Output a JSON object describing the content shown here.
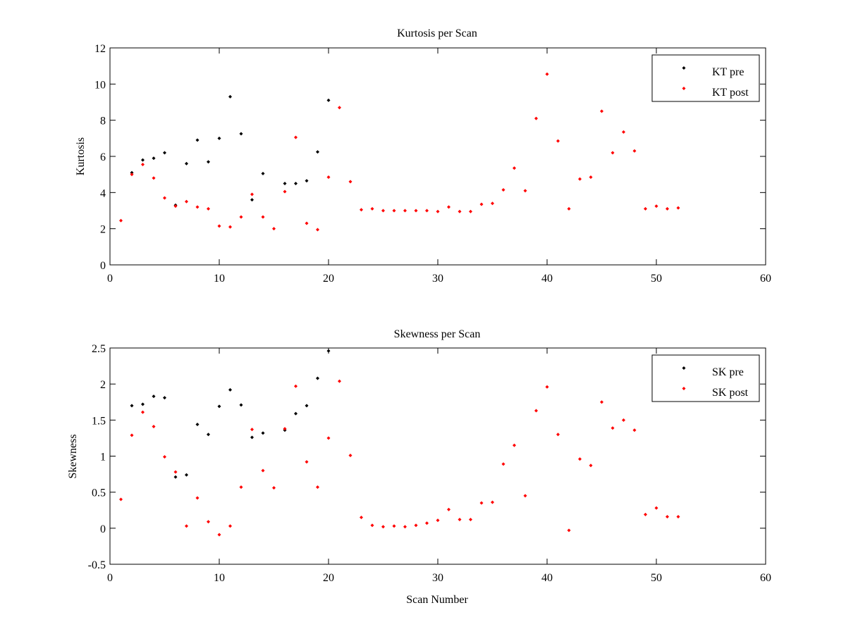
{
  "chart_data": [
    {
      "type": "scatter",
      "title": "Kurtosis per Scan",
      "xlabel": "",
      "ylabel": "Kurtosis",
      "xlim": [
        0,
        60
      ],
      "ylim": [
        0,
        12
      ],
      "xticks": [
        0,
        10,
        20,
        30,
        40,
        50,
        60
      ],
      "yticks": [
        0,
        2,
        4,
        6,
        8,
        10,
        12
      ],
      "grid": false,
      "legend_position": "top-right",
      "series": [
        {
          "name": "KT pre",
          "color": "#000000",
          "x": [
            2,
            3,
            4,
            5,
            6,
            7,
            8,
            9,
            10,
            11,
            12,
            13,
            14,
            16,
            17,
            18,
            19,
            20
          ],
          "y": [
            5.1,
            5.8,
            5.9,
            6.2,
            3.3,
            5.6,
            6.9,
            5.7,
            7.0,
            9.3,
            7.25,
            3.6,
            5.05,
            4.5,
            4.5,
            4.65,
            6.25,
            9.1
          ]
        },
        {
          "name": "KT post",
          "color": "#ff0000",
          "x": [
            1,
            2,
            3,
            4,
            5,
            6,
            7,
            8,
            9,
            10,
            11,
            12,
            13,
            14,
            15,
            16,
            17,
            18,
            19,
            20,
            21,
            22,
            23,
            24,
            25,
            26,
            27,
            28,
            29,
            30,
            31,
            32,
            33,
            34,
            35,
            36,
            37,
            38,
            39,
            40,
            41,
            42,
            43,
            44,
            45,
            46,
            47,
            48,
            49,
            50,
            51,
            52
          ],
          "y": [
            2.45,
            5.0,
            5.55,
            4.8,
            3.7,
            3.25,
            3.5,
            3.2,
            3.1,
            2.15,
            2.1,
            2.65,
            3.9,
            2.65,
            2.0,
            4.05,
            7.05,
            2.3,
            1.95,
            4.85,
            8.7,
            4.6,
            3.05,
            3.1,
            3.0,
            3.0,
            3.0,
            3.0,
            3.0,
            2.95,
            3.2,
            2.95,
            2.95,
            3.35,
            3.4,
            4.15,
            5.35,
            4.1,
            8.1,
            10.55,
            6.85,
            3.1,
            4.75,
            4.85,
            8.5,
            6.2,
            7.35,
            6.3,
            3.1,
            3.25,
            3.1,
            3.15
          ]
        }
      ]
    },
    {
      "type": "scatter",
      "title": "Skewness per Scan",
      "xlabel": "Scan Number",
      "ylabel": "Skewness",
      "xlim": [
        0,
        60
      ],
      "ylim": [
        -0.5,
        2.5
      ],
      "xticks": [
        0,
        10,
        20,
        30,
        40,
        50,
        60
      ],
      "yticks": [
        -0.5,
        0,
        0.5,
        1,
        1.5,
        2,
        2.5
      ],
      "grid": false,
      "legend_position": "top-right",
      "series": [
        {
          "name": "SK pre",
          "color": "#000000",
          "x": [
            2,
            3,
            4,
            5,
            6,
            7,
            8,
            9,
            10,
            11,
            12,
            13,
            14,
            16,
            17,
            18,
            19,
            20
          ],
          "y": [
            1.7,
            1.72,
            1.83,
            1.81,
            0.71,
            0.74,
            1.44,
            1.3,
            1.69,
            1.92,
            1.71,
            1.26,
            1.32,
            1.36,
            1.59,
            1.7,
            2.08,
            2.46
          ]
        },
        {
          "name": "SK post",
          "color": "#ff0000",
          "x": [
            1,
            2,
            3,
            4,
            5,
            6,
            7,
            8,
            9,
            10,
            11,
            12,
            13,
            14,
            15,
            16,
            17,
            18,
            19,
            20,
            21,
            22,
            23,
            24,
            25,
            26,
            27,
            28,
            29,
            30,
            31,
            32,
            33,
            34,
            35,
            36,
            37,
            38,
            39,
            40,
            41,
            42,
            43,
            44,
            45,
            46,
            47,
            48,
            49,
            50,
            51,
            52
          ],
          "y": [
            0.4,
            1.29,
            1.61,
            1.41,
            0.99,
            0.78,
            0.03,
            0.42,
            0.09,
            -0.09,
            0.03,
            0.57,
            1.37,
            0.8,
            0.56,
            1.38,
            1.97,
            0.92,
            0.57,
            1.25,
            2.04,
            1.01,
            0.15,
            0.04,
            0.02,
            0.03,
            0.02,
            0.04,
            0.07,
            0.11,
            0.26,
            0.12,
            0.12,
            0.35,
            0.36,
            0.89,
            1.15,
            0.45,
            1.63,
            1.96,
            1.3,
            -0.03,
            0.96,
            0.87,
            1.75,
            1.39,
            1.5,
            1.36,
            0.19,
            0.28,
            0.16,
            0.16
          ]
        }
      ]
    }
  ]
}
